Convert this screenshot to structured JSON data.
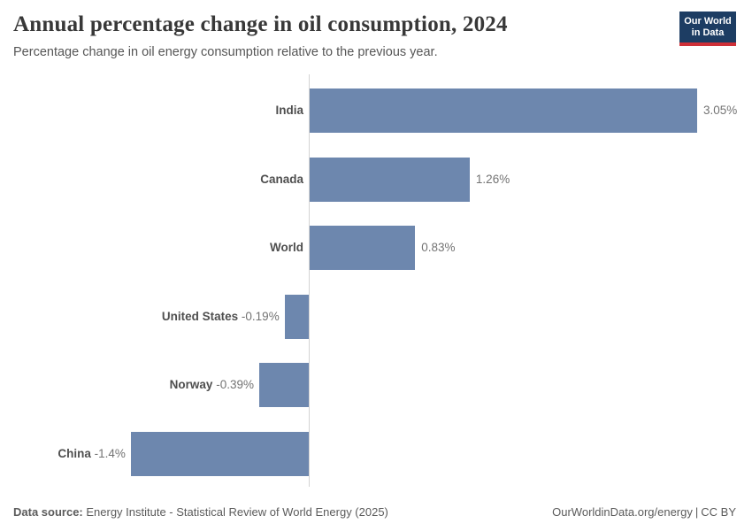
{
  "header": {
    "title": "Annual percentage change in oil consumption, 2024",
    "subtitle": "Percentage change in oil energy consumption relative to the previous year.",
    "logo_line1": "Our World",
    "logo_line2": "in Data"
  },
  "chart_data": {
    "type": "bar",
    "orientation": "horizontal",
    "title": "Annual percentage change in oil consumption, 2024",
    "categories": [
      "India",
      "Canada",
      "World",
      "United States",
      "Norway",
      "China"
    ],
    "values": [
      3.05,
      1.26,
      0.83,
      -0.19,
      -0.39,
      -1.4
    ],
    "value_labels": [
      "3.05%",
      "1.26%",
      "0.83%",
      "-0.19%",
      "-0.39%",
      "-1.4%"
    ],
    "unit": "%",
    "xlim": [
      -1.55,
      3.45
    ],
    "grid": false,
    "legend": false,
    "bar_color": "#6d87ae"
  },
  "footer": {
    "datasource_label": "Data source:",
    "datasource_value": " Energy Institute - Statistical Review of World Energy (2025)",
    "link": "OurWorldinData.org/energy",
    "separator": "|",
    "license": "CC BY"
  },
  "colors": {
    "bar": "#6d87ae",
    "axis": "#d3d3d3",
    "title": "#383838",
    "subtitle": "#565656",
    "entity_label": "#4f4f4f",
    "value_label": "#737373",
    "logo_bg": "#1d3d63",
    "logo_stripe": "#cf3038"
  }
}
